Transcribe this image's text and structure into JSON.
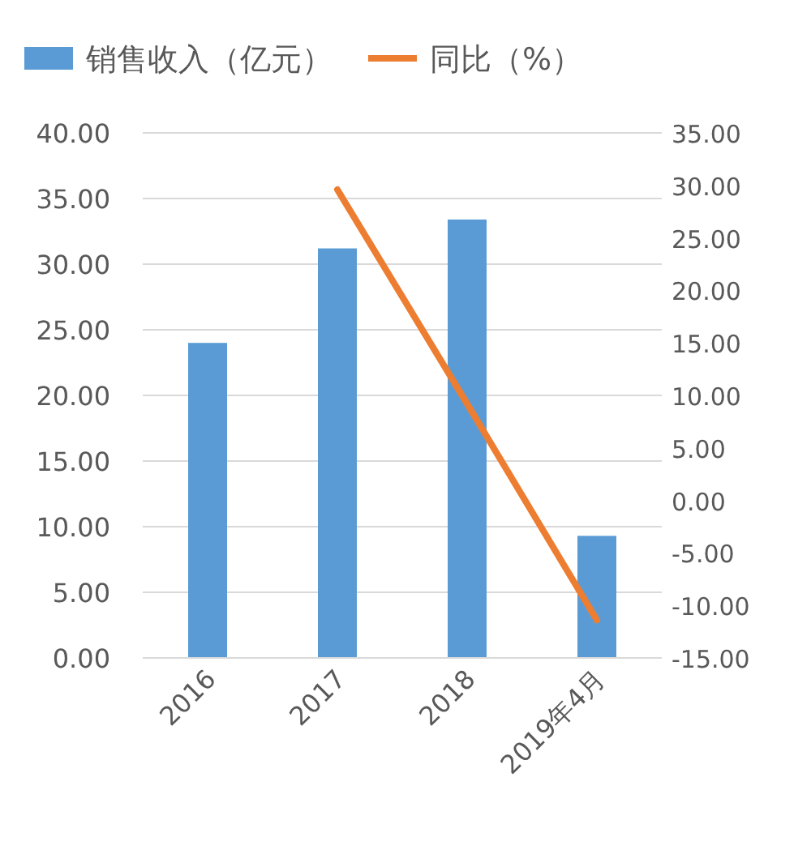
{
  "chart_data": {
    "type": "bar",
    "categories": [
      "2016",
      "2017",
      "2018",
      "2019年4月"
    ],
    "series": [
      {
        "name": "销售收入（亿元）",
        "color": "#5b9bd5",
        "values": [
          24.0,
          31.2,
          33.4,
          9.3
        ]
      },
      {
        "name": "同比（%）",
        "type": "line",
        "axis": "y2",
        "color": "#ed7d31",
        "values": [
          null,
          29.6,
          9.2,
          -11.4
        ]
      }
    ],
    "ylim": [
      0,
      40
    ],
    "yticks": [
      {
        "value": 0,
        "label": "0.00"
      },
      {
        "value": 5,
        "label": "5.00"
      },
      {
        "value": 10,
        "label": "10.00"
      },
      {
        "value": 15,
        "label": "15.00"
      },
      {
        "value": 20,
        "label": "20.00"
      },
      {
        "value": 25,
        "label": "25.00"
      },
      {
        "value": 30,
        "label": "30.00"
      },
      {
        "value": 35,
        "label": "35.00"
      },
      {
        "value": 40,
        "label": "40.00"
      }
    ],
    "y2lim": [
      -15,
      35
    ],
    "y2ticks": [
      {
        "value": -15,
        "label": "-15.00"
      },
      {
        "value": -10,
        "label": "-10.00"
      },
      {
        "value": -5,
        "label": "-5.00"
      },
      {
        "value": 0,
        "label": "0.00"
      },
      {
        "value": 5,
        "label": "5.00"
      },
      {
        "value": 10,
        "label": "10.00"
      },
      {
        "value": 15,
        "label": "15.00"
      },
      {
        "value": 20,
        "label": "20.00"
      },
      {
        "value": 25,
        "label": "25.00"
      },
      {
        "value": 30,
        "label": "30.00"
      },
      {
        "value": 35,
        "label": "35.00"
      }
    ],
    "grid": "y",
    "legend": "top",
    "marker": "none"
  }
}
